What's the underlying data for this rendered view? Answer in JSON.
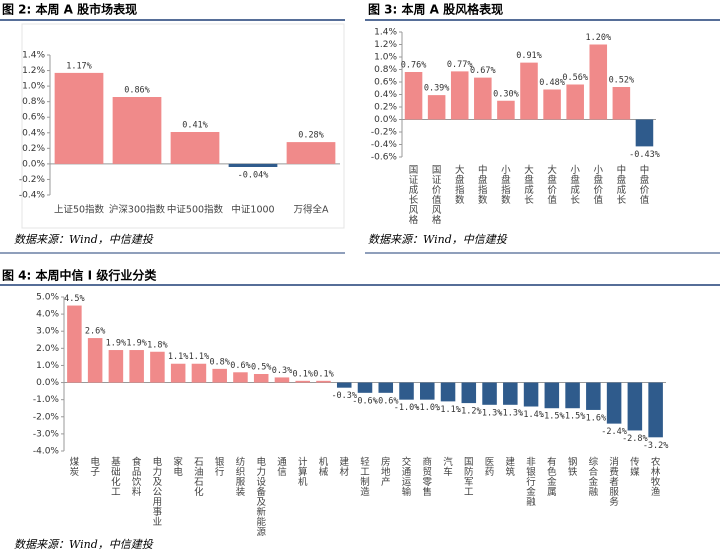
{
  "chart_data": [
    {
      "type": "bar",
      "title": "图 2: 本周 A 股市场表现",
      "source": "数据来源：Wind，中信建投",
      "categories": [
        "上证50指数",
        "沪深300指数",
        "中证500指数",
        "中证1000",
        "万得全A"
      ],
      "values": [
        1.17,
        0.86,
        0.41,
        -0.04,
        0.28
      ],
      "value_labels": [
        "1.17%",
        "0.86%",
        "0.41%",
        "-0.04%",
        "0.28%"
      ],
      "color": "#f08a8a",
      "negative_color": "#2f5b8c",
      "x_label_orientation": "horizontal",
      "ylim": [
        -0.4,
        1.4
      ],
      "yticks": [
        {
          "value": -0.4,
          "label": "-0.4%"
        },
        {
          "value": -0.2,
          "label": "-0.2%"
        },
        {
          "value": 0,
          "label": "0.0%"
        },
        {
          "value": 0.2,
          "label": "0.2%"
        },
        {
          "value": 0.4,
          "label": "0.4%"
        },
        {
          "value": 0.6,
          "label": "0.6%"
        },
        {
          "value": 0.8,
          "label": "0.8%"
        },
        {
          "value": 1.0,
          "label": "1.0%"
        },
        {
          "value": 1.2,
          "label": "1.2%"
        },
        {
          "value": 1.4,
          "label": "1.4%"
        }
      ]
    },
    {
      "type": "bar",
      "title": "图 3: 本周 A 股风格表现",
      "source": "数据来源：Wind，中信建投",
      "categories": [
        "国证成长风格",
        "国证价值风格",
        "大盘指数",
        "中盘指数",
        "小盘指数",
        "大盘成长",
        "大盘价值",
        "小盘成长",
        "小盘价值",
        "中盘成长",
        "中盘价值"
      ],
      "values": [
        0.76,
        0.39,
        0.77,
        0.67,
        0.3,
        0.91,
        0.48,
        0.56,
        1.2,
        0.52,
        -0.43
      ],
      "value_labels": [
        "0.76%",
        "0.39%",
        "0.77%",
        "0.67%",
        "0.30%",
        "0.91%",
        "0.48%",
        "0.56%",
        "1.20%",
        "0.52%",
        "-0.43%"
      ],
      "color": "#f08a8a",
      "negative_color": "#2f5b8c",
      "x_label_orientation": "vertical",
      "ylim": [
        -0.6,
        1.4
      ],
      "yticks": [
        {
          "value": -0.6,
          "label": "-0.6%"
        },
        {
          "value": -0.4,
          "label": "-0.4%"
        },
        {
          "value": -0.2,
          "label": "-0.2%"
        },
        {
          "value": 0,
          "label": "0.0%"
        },
        {
          "value": 0.2,
          "label": "0.2%"
        },
        {
          "value": 0.4,
          "label": "0.4%"
        },
        {
          "value": 0.6,
          "label": "0.6%"
        },
        {
          "value": 0.8,
          "label": "0.8%"
        },
        {
          "value": 1.0,
          "label": "1.0%"
        },
        {
          "value": 1.2,
          "label": "1.2%"
        },
        {
          "value": 1.4,
          "label": "1.4%"
        }
      ]
    },
    {
      "type": "bar",
      "title": "图 4: 本周中信 I 级行业分类",
      "source": "数据来源：Wind，中信建投",
      "categories": [
        "煤炭",
        "电子",
        "基础化工",
        "食品饮料",
        "电力及公用事业",
        "家电",
        "石油石化",
        "银行",
        "纺织服装",
        "电力设备及新能源",
        "通信",
        "计算机",
        "机械",
        "建材",
        "轻工制造",
        "房地产",
        "交通运输",
        "商贸零售",
        "汽车",
        "国防军工",
        "医药",
        "建筑",
        "非银行金融",
        "有色金属",
        "钢铁",
        "综合金融",
        "消费者服务",
        "传媒",
        "农林牧渔"
      ],
      "values": [
        4.5,
        2.6,
        1.9,
        1.9,
        1.8,
        1.1,
        1.1,
        0.8,
        0.6,
        0.5,
        0.3,
        0.1,
        0.1,
        -0.3,
        -0.6,
        -0.6,
        -1.0,
        -1.0,
        -1.1,
        -1.2,
        -1.3,
        -1.3,
        -1.4,
        -1.5,
        -1.5,
        -1.6,
        -2.4,
        -2.8,
        -3.2
      ],
      "value_labels": [
        "4.5%",
        "2.6%",
        "1.9%",
        "1.9%",
        "1.8%",
        "1.1%",
        "1.1%",
        "0.8%",
        "0.6%",
        "0.5%",
        "0.3%",
        "0.1%",
        "0.1%",
        "-0.3%",
        "-0.6%",
        "-0.6%",
        "-1.0%",
        "-1.0%",
        "-1.1%",
        "-1.2%",
        "-1.3%",
        "-1.3%",
        "-1.4%",
        "-1.5%",
        "-1.5%",
        "-1.6%",
        "-2.4%",
        "-2.8%",
        "-3.2%"
      ],
      "color": "#f08a8a",
      "negative_color": "#2f5b8c",
      "x_label_orientation": "vertical",
      "ylim": [
        -4.0,
        5.0
      ],
      "yticks": [
        {
          "value": -4.0,
          "label": "-4.0%"
        },
        {
          "value": -3.0,
          "label": "-3.0%"
        },
        {
          "value": -2.0,
          "label": "-2.0%"
        },
        {
          "value": -1.0,
          "label": "-1.0%"
        },
        {
          "value": 0,
          "label": "0.0%"
        },
        {
          "value": 1.0,
          "label": "1.0%"
        },
        {
          "value": 2.0,
          "label": "2.0%"
        },
        {
          "value": 3.0,
          "label": "3.0%"
        },
        {
          "value": 4.0,
          "label": "4.0%"
        },
        {
          "value": 5.0,
          "label": "5.0%"
        }
      ]
    }
  ]
}
